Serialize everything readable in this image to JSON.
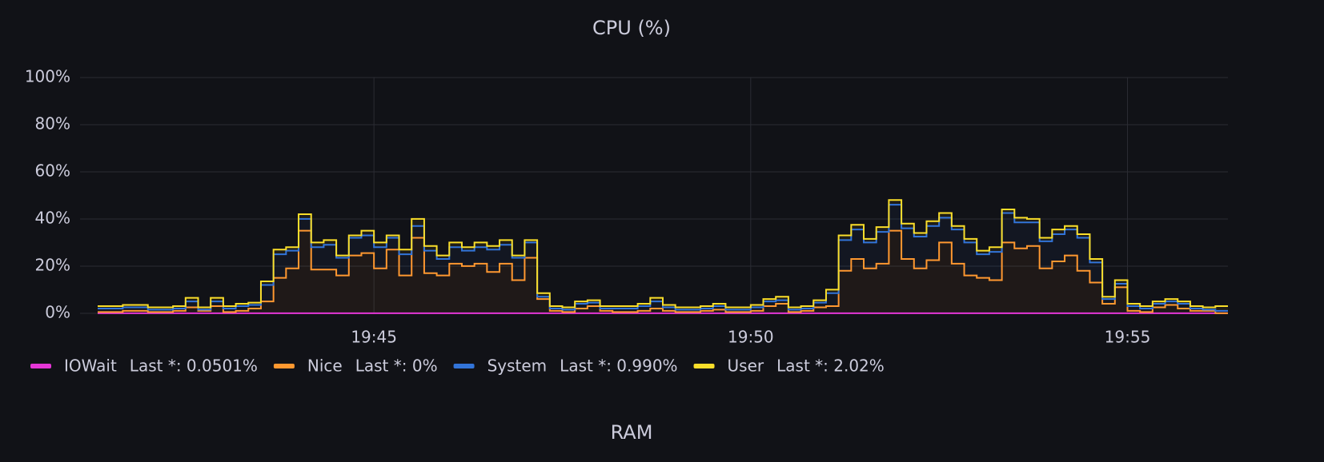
{
  "chart_data": {
    "type": "stacked-step-area",
    "title": "CPU (%)",
    "categories": [
      null,
      null,
      null,
      null,
      null,
      null,
      null,
      null,
      null,
      null,
      null,
      null,
      null,
      null,
      null,
      null,
      null,
      null,
      null,
      null,
      null,
      null,
      "19:45",
      null,
      null,
      null,
      null,
      null,
      null,
      null,
      null,
      null,
      null,
      null,
      null,
      null,
      null,
      null,
      null,
      null,
      null,
      null,
      null,
      null,
      null,
      null,
      null,
      null,
      null,
      null,
      null,
      null,
      "19:50",
      null,
      null,
      null,
      null,
      null,
      null,
      null,
      null,
      null,
      null,
      null,
      null,
      null,
      null,
      null,
      null,
      null,
      null,
      null,
      null,
      null,
      null,
      null,
      null,
      null,
      null,
      null,
      null,
      null,
      "19:55",
      null,
      null,
      null,
      null,
      null,
      null,
      null
    ],
    "ylim": [
      0,
      100
    ],
    "yticks": [
      {
        "value": 0,
        "label": "0%"
      },
      {
        "value": 20,
        "label": "20%"
      },
      {
        "value": 40,
        "label": "40%"
      },
      {
        "value": 60,
        "label": "60%"
      },
      {
        "value": 80,
        "label": "80%"
      },
      {
        "value": 100,
        "label": "100%"
      }
    ],
    "grid": true,
    "series": [
      {
        "name": "IOWait",
        "color": "#e536d6",
        "legend_stat": "Last *: 0.0501%",
        "values": [
          0.05,
          0.05,
          0.05,
          0.05,
          0.05,
          0.05,
          0.05,
          0.05,
          0.05,
          0.05,
          0.05,
          0.05,
          0.05,
          0.05,
          0.05,
          0.05,
          0.05,
          0.05,
          0.05,
          0.05,
          0.05,
          0.05,
          0.05,
          0.05,
          0.05,
          0.05,
          0.05,
          0.05,
          0.05,
          0.05,
          0.05,
          0.05,
          0.05,
          0.05,
          0.05,
          0.05,
          0.05,
          0.05,
          0.05,
          0.05,
          0.05,
          0.05,
          0.05,
          0.05,
          0.05,
          0.05,
          0.05,
          0.05,
          0.05,
          0.05,
          0.05,
          0.05,
          0.05,
          0.05,
          0.05,
          0.05,
          0.05,
          0.05,
          0.05,
          0.05,
          0.05,
          0.05,
          0.05,
          0.05,
          0.05,
          0.05,
          0.05,
          0.05,
          0.05,
          0.05,
          0.05,
          0.05,
          0.05,
          0.05,
          0.05,
          0.05,
          0.05,
          0.05,
          0.05,
          0.05,
          0.05,
          0.05,
          0.05,
          0.05,
          0.05,
          0.05,
          0.05,
          0.05,
          0.05,
          0.0501
        ]
      },
      {
        "name": "Nice",
        "color": "#ff9830",
        "legend_stat": "Last *: 0%",
        "values": [
          0.5,
          0.5,
          1,
          1,
          0.5,
          0.5,
          1,
          2.5,
          1,
          3,
          0.5,
          1,
          2,
          5,
          15,
          19,
          35,
          18.5,
          18.5,
          16,
          24.5,
          25.5,
          19,
          27,
          16,
          32,
          17,
          16,
          21,
          20,
          21,
          17.5,
          21,
          14,
          23.5,
          6,
          1,
          0.5,
          2,
          3,
          1,
          0.5,
          0.5,
          1,
          2,
          1,
          0.5,
          0.5,
          1,
          1.5,
          0.5,
          0.5,
          1,
          3,
          4,
          0.5,
          1,
          2.5,
          3,
          18,
          23,
          19,
          21,
          35,
          23,
          19,
          22.5,
          30,
          21,
          16,
          15,
          14,
          30,
          27.5,
          28.5,
          19,
          22,
          24.5,
          18,
          13,
          4,
          11,
          1,
          0.5,
          2.5,
          3.5,
          2,
          1,
          1,
          0
        ]
      },
      {
        "name": "System",
        "color": "#3274d9",
        "legend_stat": "Last *: 0.990%",
        "values": [
          1.5,
          1.5,
          1.5,
          1.5,
          1,
          1,
          1,
          2.5,
          0.5,
          2,
          1.5,
          2,
          1.5,
          7,
          10,
          7.5,
          5,
          9.5,
          10.5,
          7.5,
          7.5,
          7.5,
          9,
          5,
          9,
          5,
          9.5,
          7,
          7,
          6.5,
          7,
          9.5,
          8,
          9.5,
          6.5,
          1,
          1,
          1,
          2,
          1.5,
          1,
          1.5,
          1.5,
          2,
          3,
          1.5,
          1,
          1,
          1,
          1.5,
          1,
          1,
          1.5,
          2,
          1.5,
          1,
          1,
          2,
          5.5,
          13,
          12.5,
          11,
          13.5,
          11,
          13,
          13.5,
          14.5,
          10.5,
          14.5,
          14,
          10,
          12,
          12.5,
          11,
          10,
          11.5,
          11.5,
          11,
          14,
          8.5,
          2,
          1.5,
          2,
          1.5,
          1.5,
          1.5,
          2,
          1,
          0.5,
          0.99
        ]
      },
      {
        "name": "User",
        "color": "#fade2a",
        "legend_stat": "Last *: 2.02%",
        "values": [
          1,
          1,
          1,
          1,
          1,
          1,
          1,
          1.5,
          1,
          1.5,
          1,
          1,
          1,
          1.5,
          2,
          1.5,
          2,
          2,
          2,
          1,
          1,
          2,
          2,
          1,
          2,
          3,
          2,
          1.5,
          2,
          1.5,
          2,
          1.5,
          2,
          1,
          1,
          1.5,
          1,
          1,
          1,
          1,
          1,
          1,
          1,
          1,
          1.5,
          1,
          1,
          1,
          1,
          1,
          1,
          1,
          1,
          1,
          1.5,
          1,
          1,
          1,
          1.5,
          2,
          2,
          1.5,
          2,
          2,
          2,
          1.5,
          2,
          2,
          1.5,
          1.5,
          1.5,
          2,
          1.5,
          2,
          1.5,
          1.5,
          2,
          1.5,
          1.5,
          1.5,
          1,
          1.5,
          1,
          1,
          1,
          1,
          1,
          1,
          1,
          2.02
        ]
      }
    ]
  },
  "next_panel": {
    "title": "RAM"
  }
}
